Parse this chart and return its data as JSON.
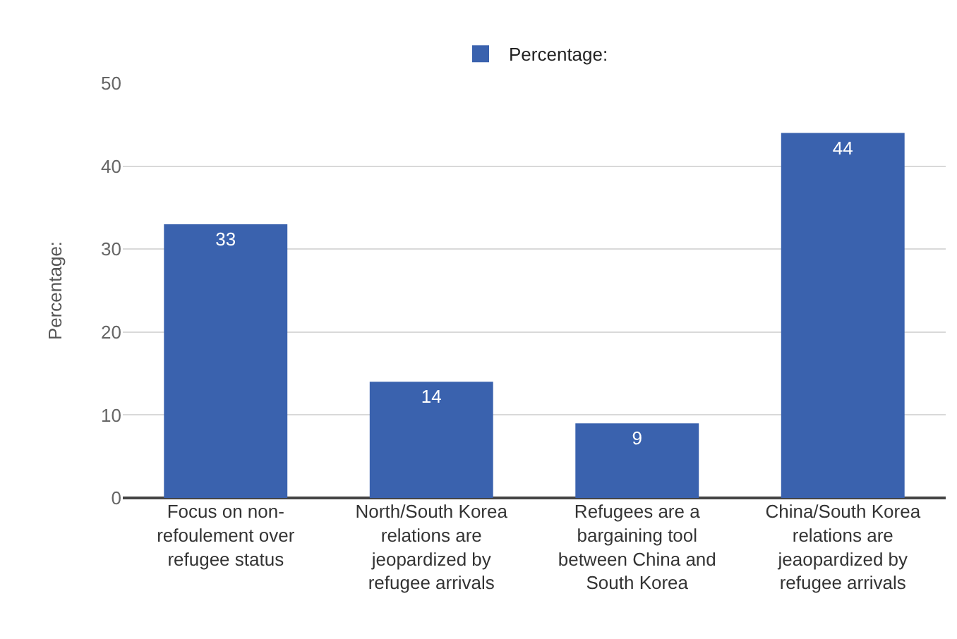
{
  "chart_data": {
    "type": "bar",
    "ylabel": "Percentage:",
    "categories": [
      "Focus on non-refoulement over refugee status",
      "North/South Korea relations are jeopardized by refugee arrivals",
      "Refugees are a bargaining tool between China and South Korea",
      "China/South Korea relations are jeaopardized by refugee arrivals"
    ],
    "series": [
      {
        "name": "Percentage:",
        "color": "#3a62ae",
        "values": [
          33,
          14,
          9,
          44
        ]
      }
    ],
    "ylim": [
      0,
      50
    ],
    "yticks": [
      0,
      10,
      20,
      30,
      40,
      50
    ],
    "grid": "y",
    "legend": "top",
    "data_labels": true
  }
}
